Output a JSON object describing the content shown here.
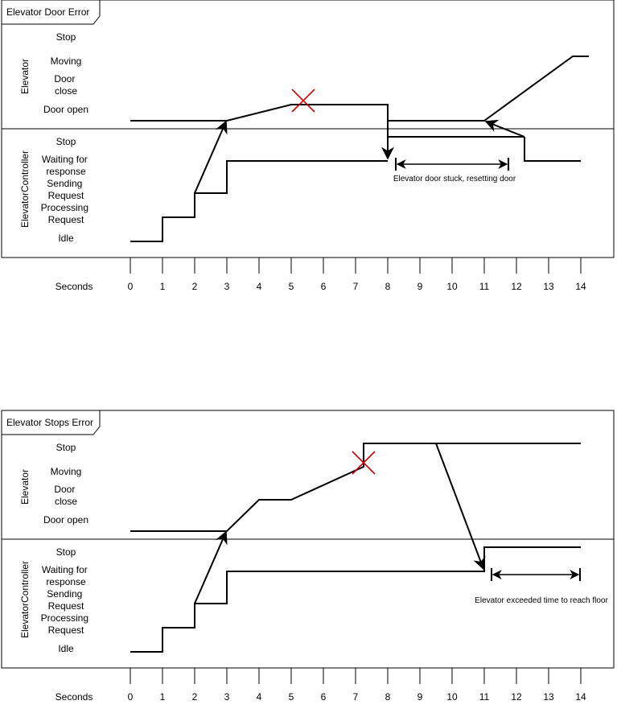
{
  "diagram1": {
    "title": "Elevator Door Error",
    "lifeline_elevator": "Elevator",
    "lifeline_controller": "ElevatorController",
    "elevator_states": [
      "Stop",
      "Moving",
      "Door close",
      "Door open"
    ],
    "controller_states": [
      "Stop",
      "Waiting for response",
      "Sending Request",
      "Processing Request",
      "Idle"
    ],
    "annotation": "Elevator door stuck, resetting door",
    "seconds_label": "Seconds",
    "ticks": [
      "0",
      "1",
      "2",
      "3",
      "4",
      "5",
      "6",
      "7",
      "8",
      "9",
      "10",
      "11",
      "12",
      "13",
      "14"
    ]
  },
  "diagram2": {
    "title": "Elevator Stops Error",
    "lifeline_elevator": "Elevator",
    "lifeline_controller": "ElevatorController",
    "elevator_states": [
      "Stop",
      "Moving",
      "Door close",
      "Door open"
    ],
    "controller_states": [
      "Stop",
      "Waiting for response",
      "Sending Request",
      "Processing Request",
      "Idle"
    ],
    "annotation": "Elevator exceeded time to reach floor",
    "seconds_label": "Seconds",
    "ticks": [
      "0",
      "1",
      "2",
      "3",
      "4",
      "5",
      "6",
      "7",
      "8",
      "9",
      "10",
      "11",
      "12",
      "13",
      "14"
    ]
  },
  "colors": {
    "line": "#000000",
    "error_mark": "#cc0000"
  }
}
